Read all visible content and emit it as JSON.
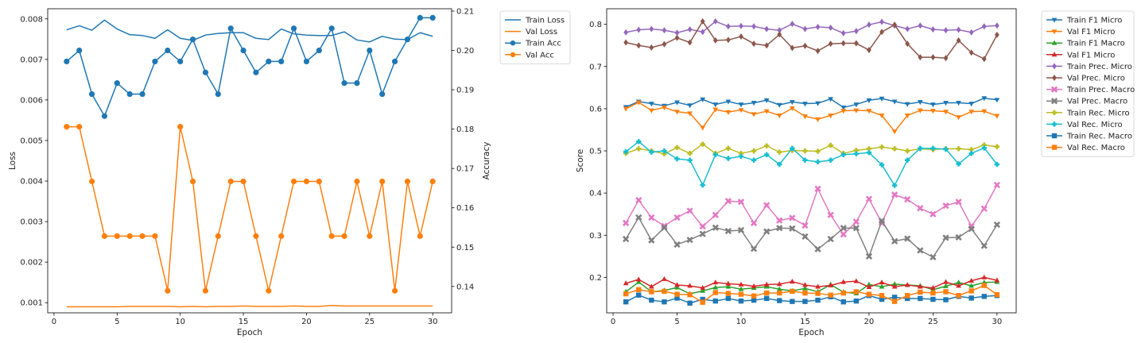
{
  "chart_data": [
    {
      "type": "line",
      "xlabel": "Epoch",
      "ylabel": "Loss",
      "y2label": "Accuracy",
      "xlim": [
        -0.5,
        31.5
      ],
      "ylim": [
        0.00075,
        0.00825
      ],
      "y2lim": [
        0.1333,
        0.2106
      ],
      "xticks": [
        0,
        5,
        10,
        15,
        20,
        25,
        30
      ],
      "yticks": [
        0.001,
        0.002,
        0.003,
        0.004,
        0.005,
        0.006,
        0.007,
        0.008
      ],
      "ytick_labels": [
        "0.001",
        "0.002",
        "0.003",
        "0.004",
        "0.005",
        "0.006",
        "0.007",
        "0.008"
      ],
      "y2ticks": [
        0.14,
        0.15,
        0.16,
        0.17,
        0.18,
        0.19,
        0.2,
        0.21
      ],
      "y2tick_labels": [
        "0.14",
        "0.15",
        "0.16",
        "0.17",
        "0.18",
        "0.19",
        "0.20",
        "0.21"
      ],
      "legend_position": "outside-upper-right",
      "x": [
        1,
        2,
        3,
        4,
        5,
        6,
        7,
        8,
        9,
        10,
        11,
        12,
        13,
        14,
        15,
        16,
        17,
        18,
        19,
        20,
        21,
        22,
        23,
        24,
        25,
        26,
        27,
        28,
        29,
        30
      ],
      "series": [
        {
          "name": "Train Loss",
          "axis": "left",
          "color": "#1f77b4",
          "marker": "none",
          "values": [
            0.00773,
            0.00783,
            0.00772,
            0.00797,
            0.00775,
            0.00761,
            0.00759,
            0.00752,
            0.00773,
            0.00752,
            0.00747,
            0.0076,
            0.00764,
            0.00766,
            0.00766,
            0.00752,
            0.00749,
            0.00775,
            0.00763,
            0.0076,
            0.00759,
            0.00759,
            0.00768,
            0.00748,
            0.00743,
            0.00757,
            0.0075,
            0.00749,
            0.00766,
            0.00757
          ]
        },
        {
          "name": "Val Loss",
          "axis": "left",
          "color": "#ff7f0e",
          "marker": "none",
          "values": [
            0.0009,
            0.0009,
            0.0009,
            0.0009,
            0.0009,
            0.00091,
            0.00091,
            0.00091,
            0.00091,
            0.0009,
            0.00091,
            0.0009,
            0.00091,
            0.00091,
            0.00092,
            0.00091,
            0.00091,
            0.00091,
            0.00092,
            0.00091,
            0.00091,
            0.00093,
            0.00092,
            0.00092,
            0.00092,
            0.00092,
            0.00092,
            0.00092,
            0.00092,
            0.00092
          ]
        },
        {
          "name": "Train Acc",
          "axis": "right",
          "color": "#1f77b4",
          "marker": "circle",
          "values": [
            0.1972,
            0.2,
            0.1889,
            0.1833,
            0.1917,
            0.1889,
            0.1889,
            0.1972,
            0.2,
            0.1972,
            0.2028,
            0.1944,
            0.1889,
            0.2056,
            0.2,
            0.1944,
            0.1972,
            0.1972,
            0.2056,
            0.1972,
            0.2,
            0.2056,
            0.1917,
            0.1917,
            0.2,
            0.1889,
            0.1972,
            0.2028,
            0.2083,
            0.2083
          ]
        },
        {
          "name": "Val Acc",
          "axis": "right",
          "color": "#ff7f0e",
          "marker": "circle",
          "values": [
            0.1806,
            0.1806,
            0.1667,
            0.1528,
            0.1528,
            0.1528,
            0.1528,
            0.1528,
            0.1389,
            0.1806,
            0.1667,
            0.1389,
            0.1528,
            0.1667,
            0.1667,
            0.1528,
            0.1389,
            0.1528,
            0.1667,
            0.1667,
            0.1667,
            0.1528,
            0.1528,
            0.1667,
            0.1528,
            0.1667,
            0.1389,
            0.1667,
            0.1528,
            0.1667
          ]
        }
      ]
    },
    {
      "type": "line",
      "xlabel": "Epoch",
      "ylabel": "Score",
      "xlim": [
        -0.5,
        31.5
      ],
      "ylim": [
        0.116,
        0.837
      ],
      "xticks": [
        0,
        5,
        10,
        15,
        20,
        25,
        30
      ],
      "yticks": [
        0.2,
        0.3,
        0.4,
        0.5,
        0.6,
        0.7,
        0.8
      ],
      "ytick_labels": [
        "0.2",
        "0.3",
        "0.4",
        "0.5",
        "0.6",
        "0.7",
        "0.8"
      ],
      "legend_position": "outside-upper-right",
      "x": [
        1,
        2,
        3,
        4,
        5,
        6,
        7,
        8,
        9,
        10,
        11,
        12,
        13,
        14,
        15,
        16,
        17,
        18,
        19,
        20,
        21,
        22,
        23,
        24,
        25,
        26,
        27,
        28,
        29,
        30
      ],
      "series": [
        {
          "name": "Train F1 Micro",
          "color": "#1f77b4",
          "marker": "triangle-down",
          "values": [
            0.604,
            0.617,
            0.612,
            0.607,
            0.615,
            0.608,
            0.622,
            0.61,
            0.617,
            0.61,
            0.614,
            0.62,
            0.609,
            0.616,
            0.612,
            0.613,
            0.623,
            0.603,
            0.61,
            0.62,
            0.624,
            0.617,
            0.611,
            0.616,
            0.61,
            0.614,
            0.614,
            0.612,
            0.625,
            0.621
          ]
        },
        {
          "name": "Val F1 Micro",
          "color": "#ff7f0e",
          "marker": "triangle-down",
          "values": [
            0.6,
            0.615,
            0.596,
            0.603,
            0.593,
            0.589,
            0.555,
            0.598,
            0.592,
            0.597,
            0.587,
            0.594,
            0.584,
            0.601,
            0.582,
            0.575,
            0.584,
            0.595,
            0.596,
            0.595,
            0.584,
            0.546,
            0.584,
            0.596,
            0.595,
            0.593,
            0.58,
            0.593,
            0.594,
            0.583
          ]
        },
        {
          "name": "Train F1 Macro",
          "color": "#2ca02c",
          "marker": "triangle-up",
          "values": [
            0.166,
            0.189,
            0.166,
            0.169,
            0.176,
            0.161,
            0.168,
            0.176,
            0.178,
            0.172,
            0.175,
            0.178,
            0.172,
            0.168,
            0.174,
            0.166,
            0.183,
            0.165,
            0.162,
            0.183,
            0.178,
            0.184,
            0.182,
            0.18,
            0.171,
            0.179,
            0.188,
            0.18,
            0.188,
            0.189
          ]
        },
        {
          "name": "Val F1 Micro",
          "color": "#d62728",
          "marker": "triangle-up",
          "values": [
            0.186,
            0.195,
            0.178,
            0.196,
            0.182,
            0.18,
            0.175,
            0.188,
            0.185,
            0.183,
            0.179,
            0.183,
            0.184,
            0.19,
            0.182,
            0.178,
            0.181,
            0.189,
            0.191,
            0.177,
            0.188,
            0.178,
            0.182,
            0.178,
            0.175,
            0.189,
            0.18,
            0.192,
            0.2,
            0.193
          ]
        },
        {
          "name": "Train Prec. Micro",
          "color": "#9467bd",
          "marker": "diamond",
          "values": [
            0.781,
            0.787,
            0.789,
            0.786,
            0.78,
            0.788,
            0.782,
            0.807,
            0.795,
            0.796,
            0.795,
            0.789,
            0.786,
            0.801,
            0.789,
            0.794,
            0.792,
            0.779,
            0.784,
            0.799,
            0.806,
            0.797,
            0.789,
            0.797,
            0.788,
            0.786,
            0.787,
            0.781,
            0.795,
            0.797
          ]
        },
        {
          "name": "Val Prec. Micro",
          "color": "#8c564b",
          "marker": "diamond",
          "values": [
            0.757,
            0.75,
            0.745,
            0.753,
            0.768,
            0.757,
            0.807,
            0.762,
            0.763,
            0.771,
            0.754,
            0.75,
            0.776,
            0.744,
            0.749,
            0.737,
            0.754,
            0.755,
            0.755,
            0.739,
            0.782,
            0.799,
            0.754,
            0.722,
            0.722,
            0.72,
            0.762,
            0.733,
            0.718,
            0.775
          ]
        },
        {
          "name": "Train Prec. Macro",
          "color": "#e377c2",
          "marker": "x",
          "values": [
            0.329,
            0.383,
            0.342,
            0.322,
            0.342,
            0.358,
            0.321,
            0.348,
            0.381,
            0.379,
            0.329,
            0.371,
            0.335,
            0.341,
            0.323,
            0.41,
            0.348,
            0.302,
            0.332,
            0.386,
            0.329,
            0.396,
            0.385,
            0.364,
            0.35,
            0.37,
            0.379,
            0.322,
            0.363,
            0.419
          ]
        },
        {
          "name": "Val Prec. Macro",
          "color": "#7f7f7f",
          "marker": "x",
          "values": [
            0.291,
            0.342,
            0.288,
            0.318,
            0.278,
            0.289,
            0.303,
            0.318,
            0.31,
            0.312,
            0.268,
            0.309,
            0.317,
            0.316,
            0.297,
            0.267,
            0.291,
            0.317,
            0.317,
            0.25,
            0.334,
            0.286,
            0.292,
            0.264,
            0.248,
            0.294,
            0.295,
            0.315,
            0.275,
            0.325
          ]
        },
        {
          "name": "Train Rec. Micro",
          "color": "#bcbd22",
          "marker": "plus",
          "values": [
            0.494,
            0.505,
            0.5,
            0.493,
            0.508,
            0.494,
            0.516,
            0.494,
            0.506,
            0.494,
            0.5,
            0.512,
            0.497,
            0.501,
            0.5,
            0.499,
            0.513,
            0.494,
            0.501,
            0.505,
            0.509,
            0.505,
            0.5,
            0.505,
            0.503,
            0.505,
            0.505,
            0.503,
            0.514,
            0.51
          ]
        },
        {
          "name": "Val Rec. Micro",
          "color": "#17becf",
          "marker": "plus",
          "values": [
            0.498,
            0.522,
            0.497,
            0.5,
            0.481,
            0.478,
            0.419,
            0.491,
            0.482,
            0.487,
            0.478,
            0.491,
            0.468,
            0.506,
            0.478,
            0.474,
            0.478,
            0.491,
            0.493,
            0.496,
            0.467,
            0.418,
            0.478,
            0.506,
            0.506,
            0.504,
            0.469,
            0.494,
            0.507,
            0.468
          ]
        },
        {
          "name": "Train Rec. Macro",
          "color": "#1f77b4",
          "marker": "square",
          "values": [
            0.142,
            0.158,
            0.146,
            0.142,
            0.151,
            0.139,
            0.148,
            0.144,
            0.15,
            0.144,
            0.146,
            0.15,
            0.145,
            0.143,
            0.143,
            0.146,
            0.154,
            0.142,
            0.144,
            0.157,
            0.148,
            0.153,
            0.15,
            0.15,
            0.148,
            0.147,
            0.155,
            0.151,
            0.155,
            0.157
          ]
        },
        {
          "name": "Val Rec. Macro",
          "color": "#ff7f0e",
          "marker": "square",
          "values": [
            0.161,
            0.171,
            0.166,
            0.167,
            0.16,
            0.159,
            0.141,
            0.164,
            0.162,
            0.16,
            0.156,
            0.163,
            0.163,
            0.167,
            0.163,
            0.162,
            0.158,
            0.163,
            0.166,
            0.16,
            0.157,
            0.143,
            0.157,
            0.165,
            0.163,
            0.166,
            0.157,
            0.168,
            0.181,
            0.159
          ]
        }
      ]
    }
  ]
}
